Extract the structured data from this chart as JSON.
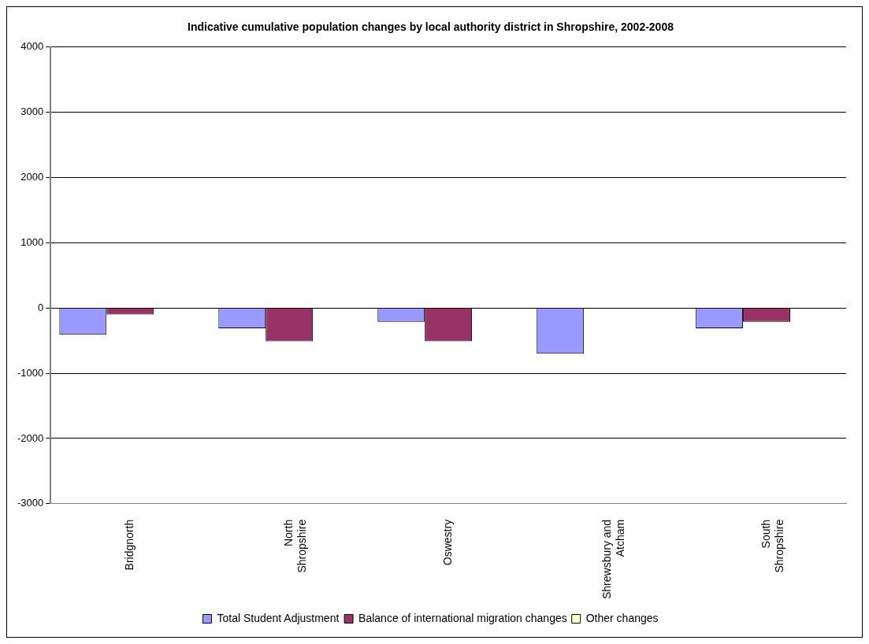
{
  "chart_data": {
    "type": "bar",
    "title": "Indicative cumulative population changes by local authority district in Shropshire, 2002-2008",
    "categories": [
      "Bridgnorth",
      "North Shropshire",
      "Oswestry",
      "Shrewsbury and Atcham",
      "South Shropshire"
    ],
    "series": [
      {
        "name": "Total Student Adjustment",
        "color": "#9999ff",
        "values": [
          -410,
          -310,
          -210,
          -700,
          -310
        ]
      },
      {
        "name": "Balance of international migration changes",
        "color": "#993366",
        "values": [
          -100,
          -510,
          -510,
          0,
          -210
        ]
      },
      {
        "name": "Other changes",
        "color": "#ffffcc",
        "values": [
          0,
          0,
          0,
          0,
          0
        ]
      }
    ],
    "ylim": [
      -3000,
      4000
    ],
    "yticks": [
      -3000,
      -2000,
      -1000,
      0,
      1000,
      2000,
      3000,
      4000
    ],
    "grid": "y",
    "legend": "bottom"
  }
}
